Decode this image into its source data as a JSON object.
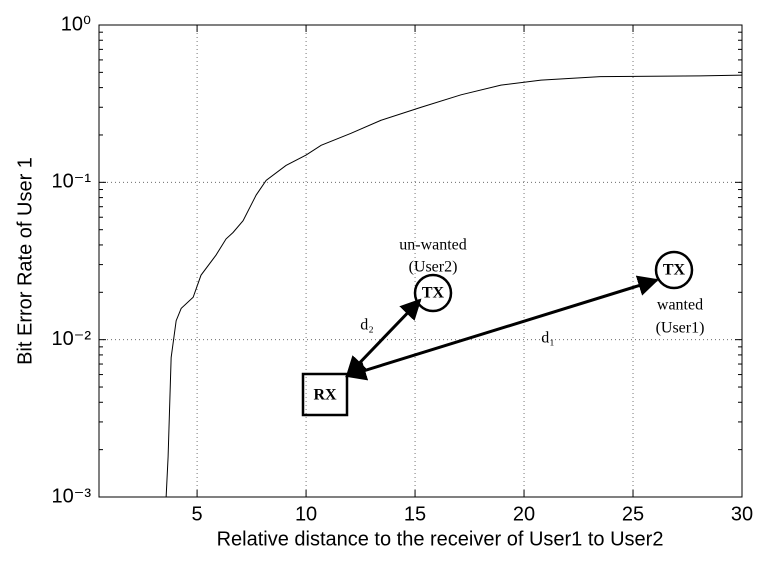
{
  "chart_data": {
    "type": "line",
    "xlabel": "Relative distance to the receiver of User1 to User2",
    "ylabel": "Bit Error Rate of User 1",
    "x": [
      3.58,
      3.67,
      3.81,
      4.04,
      4.27,
      4.82,
      5.18,
      5.87,
      6.33,
      6.65,
      7.11,
      7.71,
      8.17,
      9.08,
      10.0,
      10.69,
      12.06,
      13.44,
      15.28,
      17.11,
      18.94,
      20.78,
      23.5,
      28.1,
      30
    ],
    "series": [
      {
        "color": "#000000",
        "values": [
          0.001,
          0.0018,
          0.0077,
          0.0132,
          0.0158,
          0.0186,
          0.0257,
          0.0345,
          0.0437,
          0.048,
          0.057,
          0.083,
          0.103,
          0.128,
          0.149,
          0.172,
          0.205,
          0.248,
          0.3,
          0.36,
          0.415,
          0.446,
          0.47,
          0.475,
          0.48
        ]
      }
    ],
    "xlim": [
      0.5,
      30
    ],
    "xticks": [
      5,
      10,
      15,
      20,
      25,
      30
    ],
    "ylim": [
      0.001,
      1
    ],
    "log_y": true,
    "yticks": [
      {
        "value": 0.001,
        "label": "10⁻³"
      },
      {
        "value": 0.01,
        "label": "10⁻²"
      },
      {
        "value": 0.1,
        "label": "10⁻¹"
      },
      {
        "value": 1,
        "label": "10⁰"
      }
    ],
    "grid": true,
    "annotations": {
      "rx": "RX",
      "tx2": "TX",
      "tx1": "TX",
      "unwanted": "un-wanted",
      "user2": "(User2)",
      "wanted": "wanted",
      "user1": "(User1)",
      "d2": "d₂",
      "d1": "d₁"
    }
  }
}
